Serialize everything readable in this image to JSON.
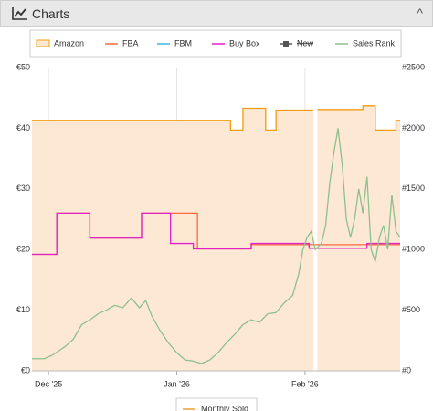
{
  "panel": {
    "title": "Charts"
  },
  "chart_data": {
    "type": "line",
    "xlim": [
      0,
      89
    ],
    "xticks": [
      {
        "value": 4,
        "label": "Dec '25"
      },
      {
        "value": 35,
        "label": "Jan '26"
      },
      {
        "value": 66,
        "label": "Feb '26"
      }
    ],
    "ylim": [
      0,
      50
    ],
    "yticks": [
      {
        "value": 0,
        "label": "€0"
      },
      {
        "value": 10,
        "label": "€10"
      },
      {
        "value": 20,
        "label": "€20"
      },
      {
        "value": 30,
        "label": "€30"
      },
      {
        "value": 40,
        "label": "€40"
      },
      {
        "value": 50,
        "label": "€50"
      }
    ],
    "y2lim": [
      0,
      2500
    ],
    "y2ticks": [
      {
        "value": 0,
        "label": "#0"
      },
      {
        "value": 500,
        "label": "#500"
      },
      {
        "value": 1000,
        "label": "#1000"
      },
      {
        "value": 1500,
        "label": "#1500"
      },
      {
        "value": 2000,
        "label": "#2000"
      },
      {
        "value": 2500,
        "label": "#2500"
      }
    ],
    "grid": "x",
    "series": [
      {
        "name": "Amazon",
        "color": "#f39c12",
        "fill": "#fde8d4",
        "style": "area",
        "visible": true,
        "x": [
          0,
          48,
          48,
          51,
          51,
          56.5,
          56.5,
          59,
          59,
          68,
          68.5,
          69,
          80,
          80,
          83,
          83,
          88,
          88,
          89
        ],
        "values": [
          41.3,
          41.3,
          39.7,
          39.7,
          43.3,
          43.3,
          39.7,
          39.7,
          43,
          43,
          null,
          43.1,
          43.1,
          43.7,
          43.7,
          39.7,
          39.7,
          41.3,
          41.3
        ]
      },
      {
        "name": "FBA",
        "color": "#ff6a3d",
        "style": "line",
        "visible": true,
        "x": [
          0,
          6,
          6,
          14,
          14,
          26.5,
          26.5,
          40,
          40,
          53,
          53,
          89
        ],
        "values": [
          19.2,
          19.2,
          26,
          26,
          21.9,
          21.9,
          26,
          26,
          20.1,
          20.1,
          20.8,
          20.8
        ]
      },
      {
        "name": "FBM",
        "color": "#3bb5e0",
        "style": "line",
        "visible": true,
        "x": [],
        "values": []
      },
      {
        "name": "Buy Box",
        "color": "#e020c8",
        "style": "line",
        "visible": true,
        "x": [
          0,
          6,
          6,
          14,
          14,
          26.5,
          26.5,
          33.5,
          33.5,
          39,
          39,
          53,
          53,
          67,
          67,
          81,
          81,
          89
        ],
        "values": [
          19.2,
          19.2,
          26,
          26,
          21.9,
          21.9,
          26,
          26,
          21,
          21,
          20.1,
          20.1,
          21,
          21,
          20.2,
          20.2,
          21,
          21
        ]
      },
      {
        "name": "New",
        "color": "#555555",
        "style": "marker",
        "visible": false,
        "x": [],
        "values": []
      },
      {
        "name": "Sales Rank",
        "color": "#8cc08c",
        "style": "line",
        "visible": true,
        "axis": "y2",
        "x": [
          0,
          3,
          5,
          8,
          10,
          12,
          14,
          16,
          18,
          20,
          22,
          24,
          26,
          27.5,
          29,
          31,
          33,
          35,
          37,
          39,
          41,
          43,
          45,
          47,
          49,
          51,
          53,
          55,
          57,
          59,
          61,
          63,
          64.5,
          65.5,
          66.5,
          67.5,
          68.5,
          70,
          71,
          72,
          73,
          74,
          75,
          76,
          77,
          78,
          79,
          80,
          81,
          82,
          83,
          84,
          85,
          86,
          87,
          88,
          89
        ],
        "values": [
          100,
          100,
          130,
          200,
          260,
          380,
          420,
          470,
          500,
          540,
          520,
          600,
          520,
          580,
          450,
          330,
          230,
          150,
          90,
          80,
          60,
          90,
          150,
          230,
          300,
          380,
          420,
          400,
          470,
          480,
          560,
          620,
          800,
          1000,
          1100,
          1150,
          1000,
          1050,
          1200,
          1550,
          1800,
          2000,
          1700,
          1250,
          1100,
          1250,
          1500,
          1300,
          1600,
          1000,
          900,
          1100,
          1200,
          1000,
          1450,
          1150,
          1100
        ]
      }
    ],
    "secondary_legend": [
      {
        "name": "Monthly Sold",
        "color": "#f0a030"
      }
    ]
  }
}
